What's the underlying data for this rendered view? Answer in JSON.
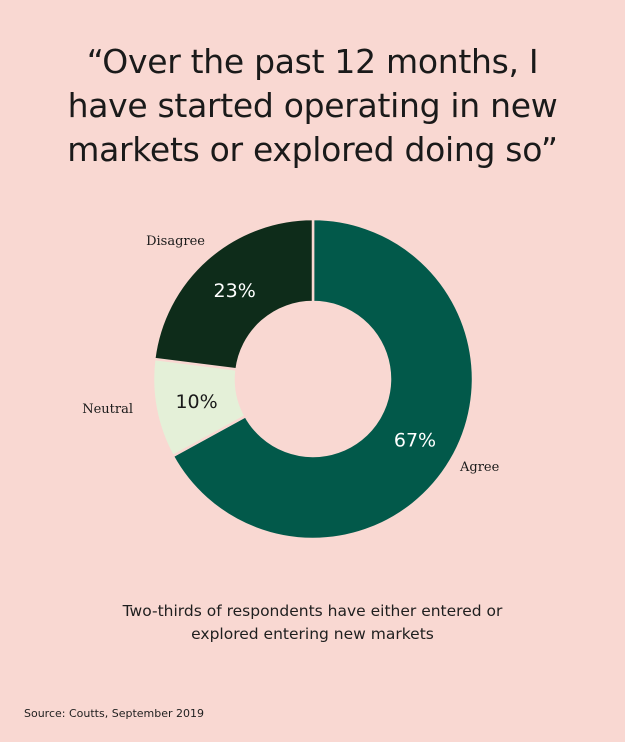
{
  "title_lines": [
    "“Over the past 12 months, I",
    "have started operating in new",
    "markets or explored doing so”"
  ],
  "caption_lines": [
    "Two-thirds of respondents have either entered or",
    "explored entering new markets"
  ],
  "source": "Source: Coutts, September 2019",
  "colors": {
    "background": "#f9d8d2",
    "agree": "#02594a",
    "neutral": "#e4f0d8",
    "disagree": "#0e2c1a"
  },
  "chart_data": {
    "type": "pie",
    "title": "“Over the past 12 months, I have started operating in new markets or explored doing so”",
    "donut": true,
    "slices": [
      {
        "label": "Agree",
        "value": 67,
        "value_label": "67%",
        "color": "#02594a"
      },
      {
        "label": "Neutral",
        "value": 10,
        "value_label": "10%",
        "color": "#e4f0d8"
      },
      {
        "label": "Disagree",
        "value": 23,
        "value_label": "23%",
        "color": "#0e2c1a"
      }
    ]
  }
}
